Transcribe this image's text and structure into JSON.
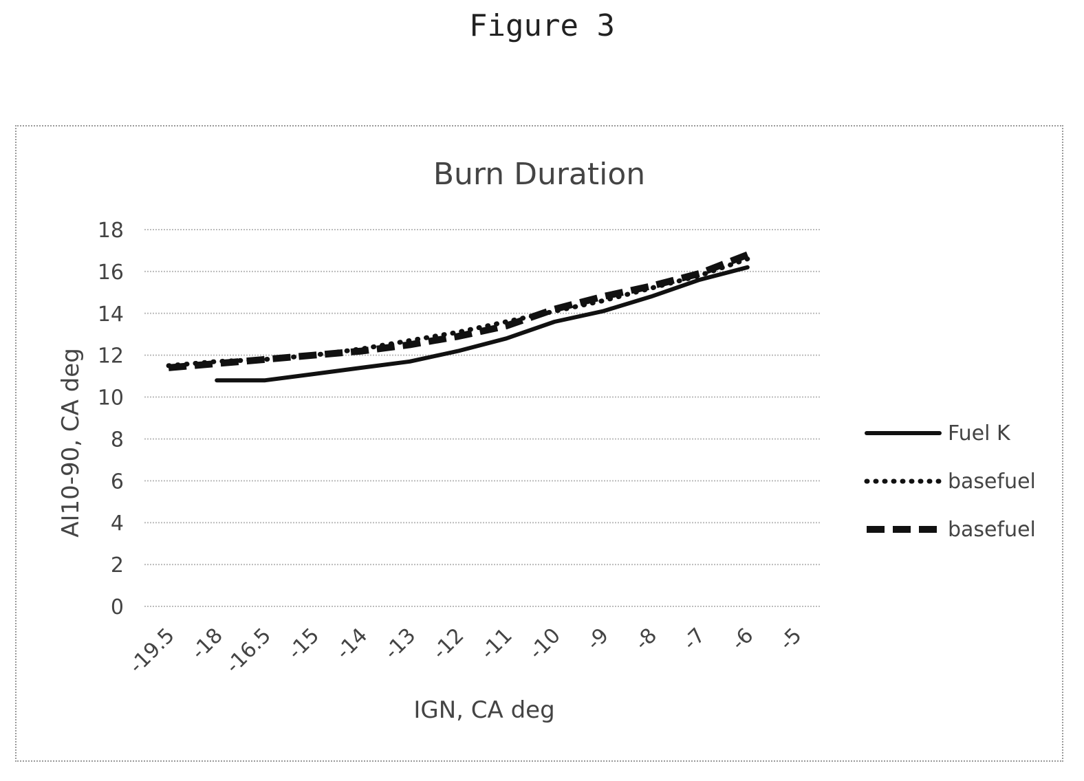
{
  "figure_label": "Figure 3",
  "chart_data": {
    "type": "line",
    "title": "Burn Duration",
    "xlabel": "IGN, CA deg",
    "ylabel": "AI10-90, CA deg",
    "categories": [
      "-19.5",
      "-18",
      "-16.5",
      "-15",
      "-14",
      "-13",
      "-12",
      "-11",
      "-10",
      "-9",
      "-8",
      "-7",
      "-6",
      "-5"
    ],
    "ylim": [
      0,
      18
    ],
    "yticks": [
      0,
      2,
      4,
      6,
      8,
      10,
      12,
      14,
      16,
      18
    ],
    "grid": true,
    "legend_position": "right",
    "series": [
      {
        "name": "Fuel K",
        "style": "solid",
        "values": [
          null,
          10.8,
          10.8,
          11.1,
          11.4,
          11.7,
          12.2,
          12.8,
          13.6,
          14.1,
          14.8,
          15.6,
          16.2,
          null
        ]
      },
      {
        "name": "basefuel",
        "style": "dotted",
        "values": [
          11.5,
          11.7,
          11.8,
          12.0,
          12.3,
          12.7,
          13.1,
          13.6,
          14.1,
          14.6,
          15.2,
          15.8,
          16.6,
          null
        ]
      },
      {
        "name": "basefuel",
        "style": "dashed",
        "values": [
          11.4,
          11.6,
          11.8,
          12.0,
          12.2,
          12.5,
          12.9,
          13.4,
          14.2,
          14.8,
          15.3,
          15.9,
          16.8,
          null
        ]
      }
    ]
  }
}
